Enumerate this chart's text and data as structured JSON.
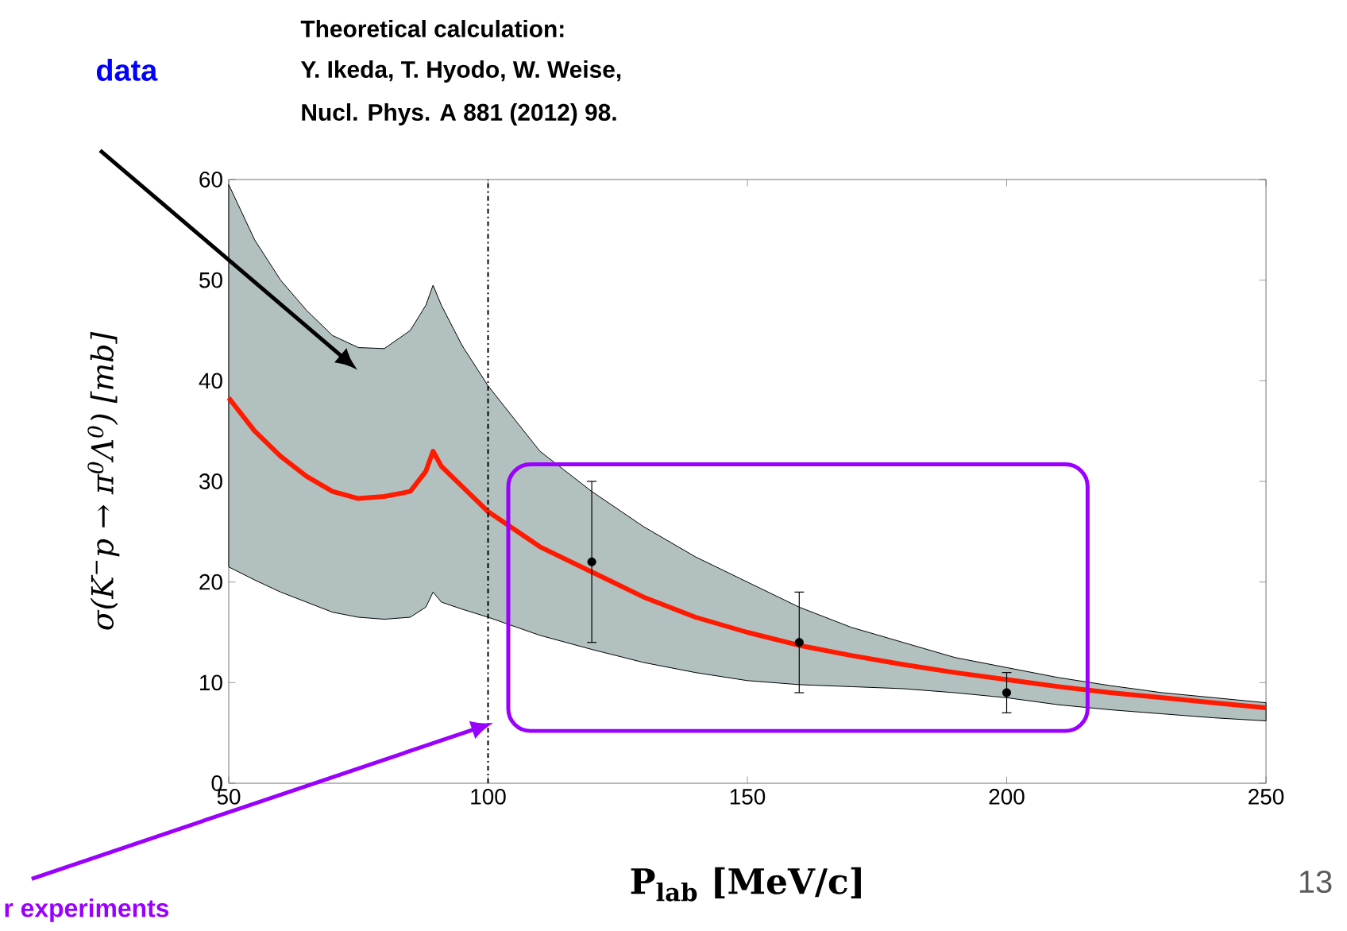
{
  "chart_data": {
    "type": "line",
    "xlabel": "P$_{lab}$   [MeV/c]",
    "ylabel": "σ(K$^{−}$p → π$^{0}$Λ$^{0}$)  [mb]",
    "annotations": [
      "Theoretical calculation:",
      "Y. Ikeda, T. Hyodo, W. Weise,",
      "Nucl. Phys. A 881 (2012) 98.",
      "data",
      "r experiments",
      "13"
    ],
    "series": [
      {
        "type": "line",
        "color": "#ff1a00",
        "marker": "none",
        "x": [
          50,
          55,
          60,
          65,
          70,
          75,
          80,
          85,
          88,
          89.4,
          91,
          95,
          100,
          110,
          120,
          130,
          140,
          150,
          160,
          170,
          180,
          190,
          200,
          210,
          220,
          230,
          240,
          250
        ],
        "values": [
          38.3,
          35,
          32.5,
          30.5,
          29,
          28.3,
          28.5,
          29,
          31,
          33,
          31.5,
          29.5,
          27,
          23.5,
          21,
          18.5,
          16.5,
          15,
          13.7,
          12.7,
          11.8,
          11,
          10.3,
          9.6,
          9,
          8.5,
          8,
          7.5
        ],
        "lower": [
          21.5,
          20.2,
          19,
          18,
          17,
          16.5,
          16.3,
          16.5,
          17.5,
          19,
          18,
          17.3,
          16.5,
          14.7,
          13.3,
          12,
          11,
          10.2,
          9.8,
          9.6,
          9.4,
          9,
          8.5,
          7.8,
          7.3,
          6.9,
          6.5,
          6.2
        ],
        "upper": [
          59.5,
          54,
          50,
          47,
          44.5,
          43.3,
          43.2,
          45,
          47.5,
          49.5,
          47.5,
          43.5,
          39.5,
          33,
          29,
          25.5,
          22.5,
          20,
          17.5,
          15.5,
          14,
          12.5,
          11.5,
          10.5,
          9.7,
          9,
          8.5,
          8
        ]
      },
      {
        "type": "scatter",
        "color": "#000000",
        "marker": "circle",
        "x": [
          120,
          160,
          200
        ],
        "values": [
          22,
          14,
          9
        ],
        "errors": [
          [
            14,
            30
          ],
          [
            9,
            19
          ],
          [
            7,
            11
          ]
        ]
      }
    ],
    "ref_lines": [
      {
        "axis": "x",
        "value": 100,
        "line_style": "dashdot"
      }
    ],
    "xlim": [
      50,
      250
    ],
    "ylim": [
      0,
      60
    ],
    "xticks": [
      50,
      100,
      150,
      200,
      250
    ],
    "yticks": [
      0,
      10,
      20,
      30,
      40,
      50,
      60
    ]
  }
}
